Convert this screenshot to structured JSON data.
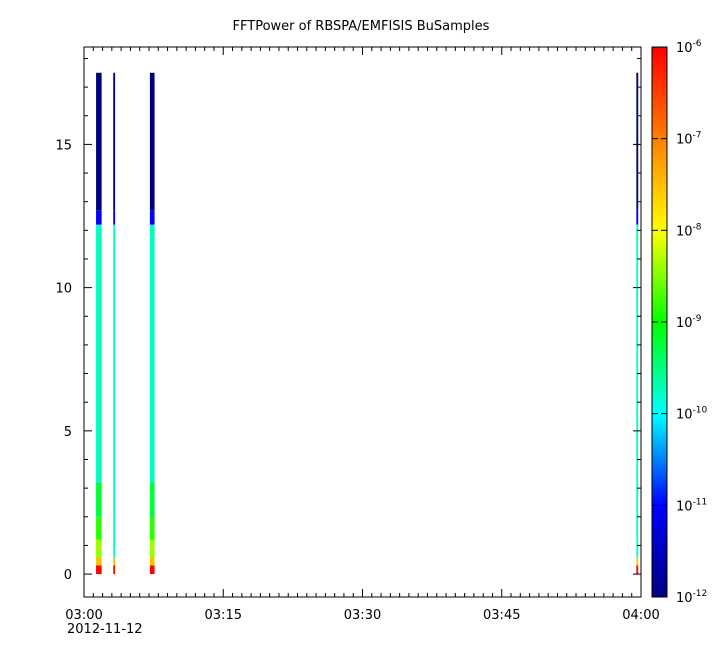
{
  "chart_data": {
    "type": "heatmap",
    "title": "FFTPower of RBSPA/EMFISIS  BuSamples",
    "xlabel": "",
    "ylabel": "",
    "x_axis": {
      "range": [
        "03:00",
        "04:00"
      ],
      "ticks": [
        "03:00",
        "03:15",
        "03:30",
        "03:45",
        "04:00"
      ],
      "date_label": "2012-11-12"
    },
    "y_axis": {
      "range": [
        -0.8,
        18.4
      ],
      "ticks": [
        0,
        5,
        10,
        15
      ],
      "tick_labels": [
        "0",
        "5",
        "10",
        "15"
      ]
    },
    "colorbar": {
      "scale": "log",
      "range": [
        1e-12,
        1e-06
      ],
      "ticks": [
        {
          "base": "10",
          "exp": "-6",
          "value": 1e-06
        },
        {
          "base": "10",
          "exp": "-7",
          "value": 1e-07
        },
        {
          "base": "10",
          "exp": "-8",
          "value": 1e-08
        },
        {
          "base": "10",
          "exp": "-9",
          "value": 1e-09
        },
        {
          "base": "10",
          "exp": "-10",
          "value": 1e-10
        },
        {
          "base": "10",
          "exp": "-11",
          "value": 1e-11
        },
        {
          "base": "10",
          "exp": "-12",
          "value": 1e-12
        }
      ],
      "colors": [
        "#00007f",
        "#0000ff",
        "#00ffff",
        "#00ff00",
        "#ffff00",
        "#ff7f00",
        "#ff0000"
      ]
    },
    "bursts": [
      {
        "start_min": 1.3,
        "end_min": 1.9,
        "y_top": 17.5,
        "profile": "strong"
      },
      {
        "start_min": 3.15,
        "end_min": 3.35,
        "y_top": 17.5,
        "profile": "thin"
      },
      {
        "start_min": 7.1,
        "end_min": 7.6,
        "y_top": 17.5,
        "profile": "strong"
      },
      {
        "start_min": 59.5,
        "end_min": 59.7,
        "y_top": 17.5,
        "profile": "thin"
      }
    ],
    "spectrum_profile": [
      {
        "y_from": 0.0,
        "y_to": 0.3,
        "power": 1e-06
      },
      {
        "y_from": 0.3,
        "y_to": 0.6,
        "power": 3e-08
      },
      {
        "y_from": 0.6,
        "y_to": 1.2,
        "power": 4e-09
      },
      {
        "y_from": 1.2,
        "y_to": 2.0,
        "power": 1.5e-09
      },
      {
        "y_from": 2.0,
        "y_to": 3.2,
        "power": 6e-10
      },
      {
        "y_from": 3.2,
        "y_to": 12.2,
        "power": 1.8e-10
      },
      {
        "y_from": 12.2,
        "y_to": 12.7,
        "power": 1e-11
      },
      {
        "y_from": 12.7,
        "y_to": 17.5,
        "power": 1e-12
      }
    ]
  }
}
